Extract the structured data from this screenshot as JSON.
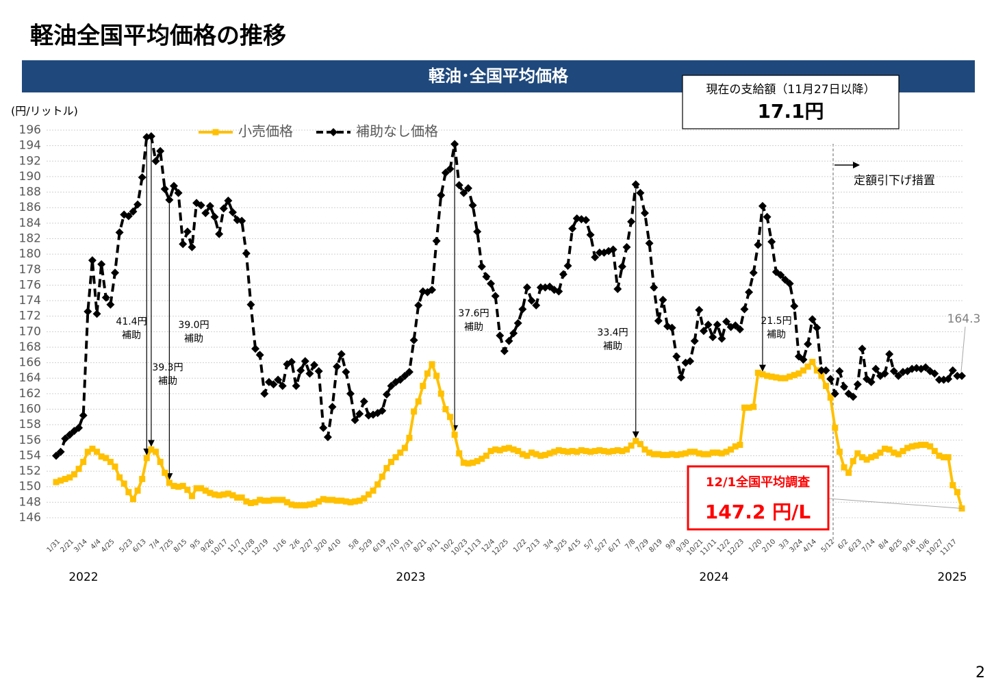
{
  "page_title": "軽油全国平均価格の推移",
  "page_number": "2",
  "chart_data": {
    "type": "line",
    "title": "軽油･全国平均価格",
    "y_label": "(円/リットル)",
    "categories": [
      "1/31",
      null,
      null,
      "2/21",
      null,
      null,
      "3/14",
      null,
      null,
      "4/4",
      null,
      null,
      "4/25",
      null,
      null,
      null,
      "5/23",
      null,
      null,
      "6/13",
      null,
      null,
      "7/4",
      null,
      null,
      "7/25",
      null,
      null,
      "8/15",
      null,
      null,
      "9/5",
      null,
      null,
      "9/26",
      null,
      null,
      "10/17",
      null,
      null,
      "11/7",
      null,
      null,
      "11/28",
      null,
      null,
      "12/19",
      null,
      null,
      null,
      "1/16",
      null,
      null,
      "2/6",
      null,
      null,
      "2/27",
      null,
      null,
      "3/20",
      null,
      null,
      "4/10",
      null,
      null,
      null,
      "5/8",
      null,
      null,
      "5/29",
      null,
      null,
      "6/19",
      null,
      null,
      "7/10",
      null,
      null,
      "7/31",
      null,
      null,
      "8/21",
      null,
      null,
      "9/11",
      null,
      null,
      "10/2",
      null,
      null,
      "10/23",
      null,
      null,
      "11/13",
      null,
      null,
      "12/4",
      null,
      null,
      "12/25",
      null,
      null,
      null,
      "1/22",
      null,
      null,
      "2/13",
      null,
      null,
      "3/4",
      null,
      null,
      "3/25",
      null,
      null,
      "4/15",
      null,
      null,
      "5/7",
      null,
      null,
      "5/27",
      null,
      null,
      "6/17",
      null,
      null,
      "7/8",
      null,
      null,
      "7/29",
      null,
      null,
      "8/19",
      null,
      null,
      "9/9",
      null,
      null,
      "9/30",
      null,
      null,
      "10/21",
      null,
      null,
      "11/11",
      null,
      null,
      "12/2",
      null,
      null,
      "12/23",
      null,
      null,
      null,
      "1/20",
      null,
      null,
      "2/10",
      null,
      null,
      "3/3",
      null,
      null,
      "3/24",
      null,
      null,
      "4/14",
      null,
      null,
      null,
      "5/12",
      null,
      null,
      "6/2",
      null,
      null,
      "6/23",
      null,
      null,
      "7/14",
      null,
      null,
      "8/4",
      null,
      null,
      "8/25",
      null,
      null,
      "9/16",
      null,
      null,
      "10/6",
      null,
      null,
      "10/27",
      null,
      null,
      "11/17",
      null,
      null
    ],
    "years": [
      "2022",
      "2023",
      "2024",
      "2025"
    ],
    "series": [
      {
        "name": "小売価格",
        "color": "#FFC000",
        "marker": "square",
        "dash": false,
        "values": [
          150.6,
          150.8,
          151.0,
          151.2,
          151.6,
          152.3,
          153.2,
          154.5,
          154.9,
          154.5,
          153.9,
          153.7,
          153.2,
          152.6,
          151.2,
          150.4,
          149.3,
          148.4,
          149.5,
          151.0,
          153.7,
          154.8,
          154.5,
          153.2,
          151.8,
          150.5,
          150.1,
          150.0,
          150.1,
          149.6,
          148.8,
          149.8,
          149.8,
          149.5,
          149.2,
          149.0,
          148.9,
          149.0,
          149.1,
          148.9,
          148.6,
          148.6,
          148.1,
          147.9,
          148.0,
          148.3,
          148.2,
          148.2,
          148.3,
          148.3,
          148.3,
          148.0,
          147.7,
          147.6,
          147.6,
          147.6,
          147.7,
          147.8,
          148.1,
          148.4,
          148.3,
          148.3,
          148.2,
          148.2,
          148.1,
          148.0,
          148.1,
          148.2,
          148.5,
          149.0,
          149.5,
          150.3,
          151.3,
          152.4,
          153.2,
          153.8,
          154.4,
          155.0,
          156.3,
          159.7,
          161.0,
          163.0,
          164.6,
          165.8,
          164.3,
          162.0,
          160.0,
          159.0,
          156.7,
          154.3,
          153.1,
          153.0,
          153.1,
          153.3,
          153.6,
          154.0,
          154.6,
          154.8,
          154.7,
          154.9,
          155.0,
          154.8,
          154.6,
          154.2,
          154.0,
          154.4,
          154.2,
          154.0,
          154.1,
          154.3,
          154.5,
          154.7,
          154.6,
          154.5,
          154.6,
          154.5,
          154.7,
          154.6,
          154.5,
          154.6,
          154.7,
          154.6,
          154.5,
          154.6,
          154.7,
          154.6,
          154.8,
          155.3,
          155.9,
          155.5,
          154.8,
          154.4,
          154.2,
          154.2,
          154.1,
          154.1,
          154.2,
          154.1,
          154.2,
          154.3,
          154.5,
          154.5,
          154.3,
          154.2,
          154.2,
          154.4,
          154.4,
          154.3,
          154.5,
          154.8,
          155.2,
          155.4,
          160.2,
          160.2,
          160.3,
          164.7,
          164.5,
          164.3,
          164.2,
          164.1,
          164.0,
          164.0,
          164.2,
          164.4,
          164.6,
          165.0,
          165.5,
          166.1,
          165.0,
          164.3,
          163.0,
          161.5,
          157.6,
          154.5,
          152.5,
          151.8,
          153.3,
          154.3,
          153.8,
          153.5,
          153.8,
          154.0,
          154.4,
          154.9,
          154.8,
          154.4,
          154.2,
          154.6,
          155.0,
          155.2,
          155.3,
          155.4,
          155.4,
          155.2,
          154.6,
          154.0,
          153.8,
          153.8,
          150.2,
          149.3,
          147.2
        ]
      },
      {
        "name": "補助なし価格",
        "color": "#000000",
        "marker": "diamond",
        "dash": true,
        "values": [
          154.0,
          154.5,
          156.2,
          156.7,
          157.2,
          157.6,
          159.2,
          172.6,
          179.2,
          172.3,
          178.7,
          174.4,
          173.5,
          177.6,
          182.8,
          185.1,
          184.9,
          185.5,
          186.4,
          189.9,
          195.1,
          195.2,
          192.0,
          193.3,
          188.4,
          187.0,
          188.8,
          187.9,
          181.3,
          182.9,
          180.9,
          186.6,
          186.3,
          185.3,
          186.2,
          184.8,
          182.6,
          185.9,
          186.9,
          185.4,
          184.4,
          184.3,
          180.1,
          173.5,
          167.8,
          167.0,
          162.0,
          163.5,
          163.2,
          163.8,
          163.0,
          165.8,
          166.1,
          163.0,
          165.0,
          166.2,
          164.6,
          165.7,
          164.9,
          157.6,
          156.4,
          160.3,
          165.5,
          167.1,
          164.8,
          162.0,
          158.6,
          159.4,
          161.0,
          159.2,
          159.3,
          159.5,
          159.8,
          161.9,
          163.0,
          163.5,
          163.8,
          164.3,
          164.8,
          168.9,
          173.4,
          175.2,
          175.1,
          175.4,
          181.7,
          187.6,
          190.5,
          191.0,
          194.2,
          188.9,
          187.9,
          188.5,
          186.3,
          182.9,
          178.4,
          177.1,
          176.2,
          174.6,
          169.5,
          167.5,
          168.8,
          169.8,
          171.1,
          172.9,
          175.7,
          174.0,
          173.4,
          175.7,
          175.7,
          175.8,
          175.4,
          175.2,
          177.4,
          178.5,
          183.3,
          184.6,
          184.5,
          184.4,
          182.5,
          179.6,
          180.2,
          180.2,
          180.4,
          180.6,
          175.5,
          178.4,
          180.9,
          184.2,
          189.0,
          187.9,
          185.3,
          181.4,
          175.7,
          171.4,
          174.1,
          170.7,
          170.5,
          166.8,
          164.1,
          166.0,
          166.2,
          168.8,
          172.8,
          170.1,
          170.9,
          169.3,
          170.9,
          169.1,
          171.3,
          170.6,
          170.8,
          170.3,
          172.9,
          175.1,
          177.6,
          181.2,
          186.2,
          184.8,
          181.6,
          177.7,
          177.3,
          176.7,
          176.2,
          173.3,
          166.8,
          166.4,
          168.4,
          171.6,
          170.5,
          165.0,
          165.0,
          163.9,
          162.0,
          164.9,
          162.9,
          162.0,
          161.6,
          163.2,
          167.8,
          163.9,
          163.5,
          165.2,
          164.3,
          164.6,
          167.1,
          164.9,
          164.3,
          164.8,
          164.9,
          165.2,
          165.3,
          165.2,
          165.4,
          164.9,
          164.6,
          163.8,
          163.8,
          163.9,
          165.0,
          164.3,
          164.3
        ]
      }
    ],
    "ylim": [
      146,
      196
    ],
    "yticks": [
      146,
      148,
      150,
      152,
      154,
      156,
      158,
      160,
      162,
      164,
      166,
      168,
      170,
      172,
      174,
      176,
      178,
      180,
      182,
      184,
      186,
      188,
      190,
      192,
      194,
      196
    ],
    "grid": true,
    "legend": "top",
    "annotations": [
      {
        "text": "41.4円",
        "sub": "補助"
      },
      {
        "text": "39.3円",
        "sub": "補助"
      },
      {
        "text": "39.0円",
        "sub": "補助"
      },
      {
        "text": "37.6円",
        "sub": "補助"
      },
      {
        "text": "33.4円",
        "sub": "補助"
      },
      {
        "text": "21.5円",
        "sub": "補助"
      }
    ],
    "subsidy_box": {
      "heading": "現在の支給額（11月27日以降）",
      "amount": "17.1円"
    },
    "measure_note": "定額引下げ措置",
    "callout": {
      "heading": "12/1全国平均調査",
      "text": "147.2 円/L"
    }
  }
}
